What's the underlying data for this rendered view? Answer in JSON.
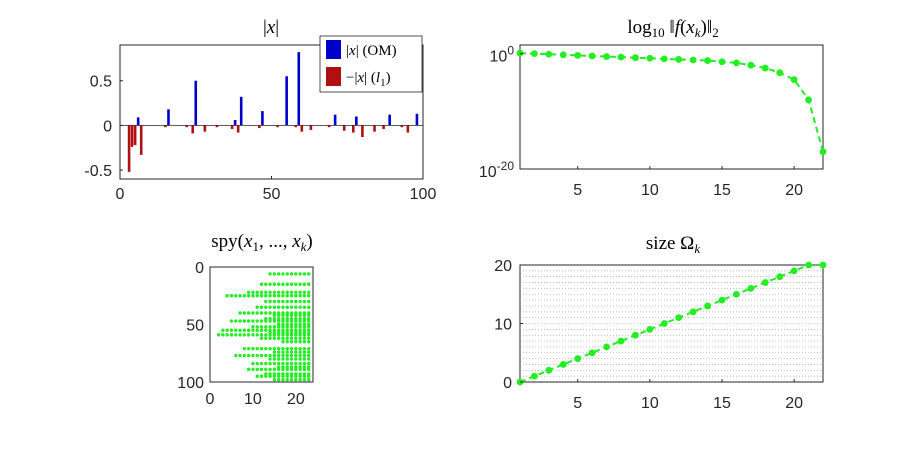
{
  "chart_data": [
    {
      "id": "bar",
      "type": "bar",
      "title": "|x|",
      "xlim": [
        0,
        100
      ],
      "ylim": [
        -0.6,
        0.9
      ],
      "xticks": [
        0,
        50,
        100
      ],
      "yticks": [
        -0.5,
        0,
        0.5
      ],
      "ytick_labels": [
        "-0.5",
        "0",
        "0.5"
      ],
      "legend_position": "top-right",
      "series": [
        {
          "name": "|x| (OM)",
          "color": "#0000cc",
          "points": [
            {
              "x": 6,
              "y": 0.09
            },
            {
              "x": 16,
              "y": 0.18
            },
            {
              "x": 25,
              "y": 0.5
            },
            {
              "x": 38,
              "y": 0.06
            },
            {
              "x": 40,
              "y": 0.32
            },
            {
              "x": 47,
              "y": 0.16
            },
            {
              "x": 55,
              "y": 0.55
            },
            {
              "x": 59,
              "y": 0.82
            },
            {
              "x": 71,
              "y": 0.12
            },
            {
              "x": 78,
              "y": 0.1
            },
            {
              "x": 89,
              "y": 0.12
            },
            {
              "x": 98,
              "y": 0.13
            }
          ]
        },
        {
          "name": "−|x| (l1)",
          "color": "#b01010",
          "points": [
            {
              "x": 3,
              "y": -0.52
            },
            {
              "x": 4,
              "y": -0.24
            },
            {
              "x": 5,
              "y": -0.22
            },
            {
              "x": 7,
              "y": -0.33
            },
            {
              "x": 15,
              "y": -0.02
            },
            {
              "x": 22,
              "y": -0.02
            },
            {
              "x": 24,
              "y": -0.09
            },
            {
              "x": 28,
              "y": -0.07
            },
            {
              "x": 32,
              "y": -0.02
            },
            {
              "x": 37,
              "y": -0.04
            },
            {
              "x": 39,
              "y": -0.08
            },
            {
              "x": 46,
              "y": -0.03
            },
            {
              "x": 52,
              "y": -0.02
            },
            {
              "x": 58,
              "y": -0.02
            },
            {
              "x": 60,
              "y": -0.07
            },
            {
              "x": 63,
              "y": -0.05
            },
            {
              "x": 69,
              "y": -0.02
            },
            {
              "x": 74,
              "y": -0.06
            },
            {
              "x": 77,
              "y": -0.08
            },
            {
              "x": 80,
              "y": -0.13
            },
            {
              "x": 84,
              "y": -0.07
            },
            {
              "x": 87,
              "y": -0.04
            },
            {
              "x": 93,
              "y": -0.02
            },
            {
              "x": 95,
              "y": -0.08
            }
          ]
        }
      ]
    },
    {
      "id": "log",
      "type": "line",
      "title": "log10 ||f(x_k)||_2",
      "yscale": "log",
      "xlim": [
        1,
        22
      ],
      "ylim": [
        -20,
        1.5
      ],
      "xticks": [
        5,
        10,
        15,
        20
      ],
      "yticks": [
        {
          "value": 0,
          "base": "10",
          "exp": "0"
        },
        {
          "value": -20,
          "base": "10",
          "exp": "-20"
        }
      ],
      "color": "#22ee22",
      "style": "dashed-with-markers",
      "x": [
        1,
        2,
        3,
        4,
        5,
        6,
        7,
        8,
        9,
        10,
        11,
        12,
        13,
        14,
        15,
        16,
        17,
        18,
        19,
        20,
        21,
        22
      ],
      "log10_values": [
        0.1,
        0,
        -0.1,
        -0.2,
        -0.3,
        -0.4,
        -0.5,
        -0.6,
        -0.7,
        -0.8,
        -0.9,
        -1.0,
        -1.1,
        -1.2,
        -1.4,
        -1.6,
        -2.0,
        -2.5,
        -3.3,
        -4.5,
        -8,
        -17
      ]
    },
    {
      "id": "spy",
      "type": "scatter",
      "title": "spy(x1, ..., xk)",
      "xlim": [
        0,
        24
      ],
      "ylim": [
        100,
        0
      ],
      "xticks": [
        0,
        10,
        20
      ],
      "yticks": [
        0,
        50,
        100
      ],
      "color": "#22ee22",
      "rows": [
        {
          "row": 6,
          "start": 14
        },
        {
          "row": 15,
          "start": 12
        },
        {
          "row": 22,
          "start": 9
        },
        {
          "row": 25,
          "start": 4
        },
        {
          "row": 30,
          "start": 13
        },
        {
          "row": 35,
          "start": 11
        },
        {
          "row": 40,
          "start": 7
        },
        {
          "row": 42,
          "start": 15
        },
        {
          "row": 45,
          "start": 13
        },
        {
          "row": 47,
          "start": 5
        },
        {
          "row": 50,
          "start": 16
        },
        {
          "row": 52,
          "start": 10
        },
        {
          "row": 55,
          "start": 3
        },
        {
          "row": 57,
          "start": 14
        },
        {
          "row": 59,
          "start": 2
        },
        {
          "row": 62,
          "start": 12
        },
        {
          "row": 65,
          "start": 17
        },
        {
          "row": 71,
          "start": 8
        },
        {
          "row": 74,
          "start": 15
        },
        {
          "row": 77,
          "start": 6
        },
        {
          "row": 80,
          "start": 14
        },
        {
          "row": 84,
          "start": 10
        },
        {
          "row": 87,
          "start": 16
        },
        {
          "row": 89,
          "start": 9
        },
        {
          "row": 93,
          "start": 13
        },
        {
          "row": 95,
          "start": 11
        },
        {
          "row": 98,
          "start": 15
        }
      ],
      "last_column": 23
    },
    {
      "id": "size",
      "type": "line",
      "title": "size Ω_k",
      "xlim": [
        1,
        22
      ],
      "ylim": [
        0,
        20
      ],
      "xticks": [
        5,
        10,
        15,
        20
      ],
      "yticks": [
        0,
        10,
        20
      ],
      "grid": "dotted horizontal lines at every integer",
      "color": "#22ee22",
      "style": "dashed-with-markers",
      "x": [
        1,
        2,
        3,
        4,
        5,
        6,
        7,
        8,
        9,
        10,
        11,
        12,
        13,
        14,
        15,
        16,
        17,
        18,
        19,
        20,
        21,
        22
      ],
      "y": [
        0,
        1,
        2,
        3,
        4,
        5,
        6,
        7,
        8,
        9,
        10,
        11,
        12,
        13,
        14,
        15,
        16,
        17,
        18,
        19,
        20,
        20
      ]
    }
  ]
}
